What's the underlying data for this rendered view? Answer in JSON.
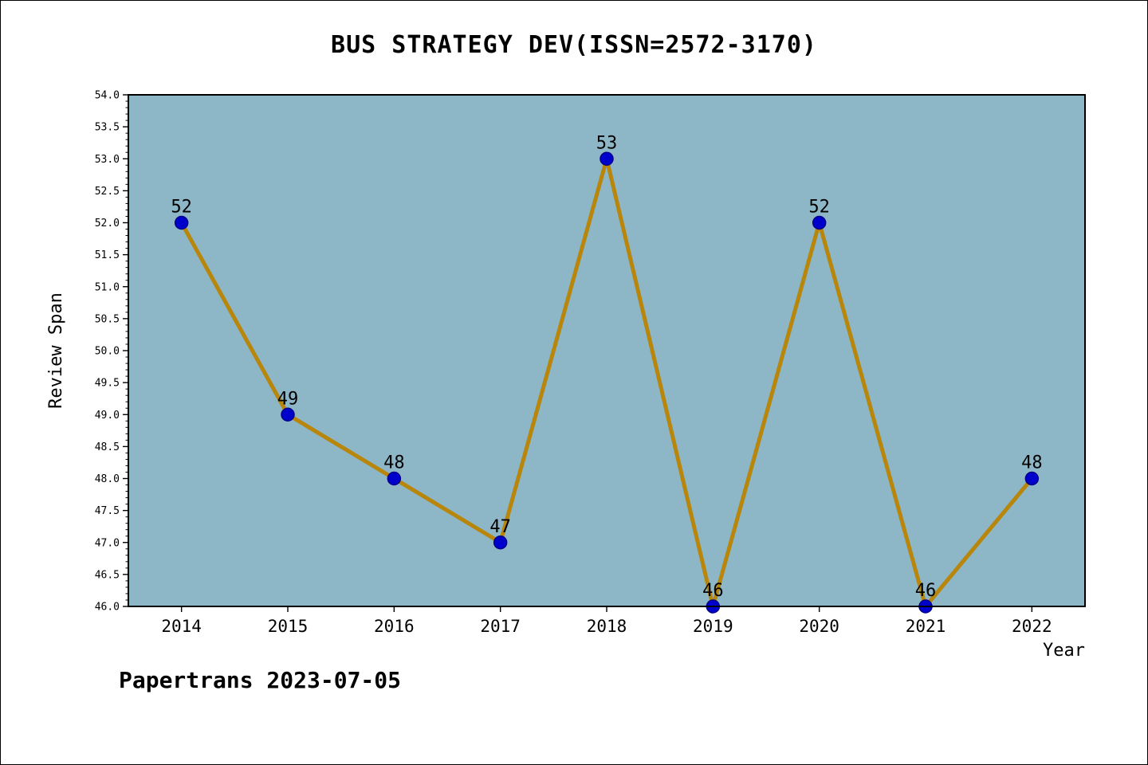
{
  "chart_data": {
    "type": "line",
    "title": "BUS STRATEGY DEV(ISSN=2572-3170)",
    "xlabel": "Year",
    "ylabel": "Review Span",
    "x": [
      2014,
      2015,
      2016,
      2017,
      2018,
      2019,
      2020,
      2021,
      2022
    ],
    "values": [
      52,
      49,
      48,
      47,
      53,
      46,
      52,
      46,
      48
    ],
    "data_labels": [
      "52",
      "49",
      "48",
      "47",
      "53",
      "46",
      "52",
      "46",
      "48"
    ],
    "xlim": [
      2013.5,
      2022.5
    ],
    "ylim": [
      46.0,
      54.0
    ],
    "y_major_step": 0.5,
    "y_minor_step": 0.1,
    "grid": false,
    "legend": "none",
    "line_color": "#b8860b",
    "marker_fill": "#0000cc",
    "marker_edge": "#00008b",
    "plot_bg": "#8db6c7",
    "footer": "Papertrans 2023-07-05"
  }
}
